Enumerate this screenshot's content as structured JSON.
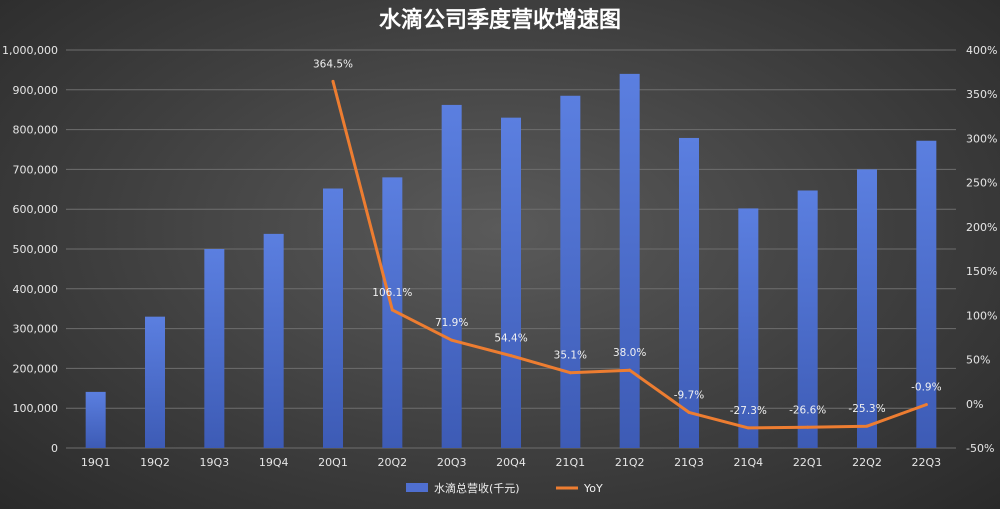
{
  "chart_data": {
    "type": "bar+line",
    "title": "水滴公司季度营收增速图",
    "categories": [
      "19Q1",
      "19Q2",
      "19Q3",
      "19Q4",
      "20Q1",
      "20Q2",
      "20Q3",
      "20Q4",
      "21Q1",
      "21Q2",
      "21Q3",
      "21Q4",
      "22Q1",
      "22Q2",
      "22Q3"
    ],
    "series": [
      {
        "name": "水滴总营收(千元)",
        "type": "bar",
        "axis": "left",
        "color": "#4f6fd0",
        "values": [
          141000,
          330000,
          500000,
          538000,
          652000,
          680000,
          862000,
          830000,
          885000,
          940000,
          779000,
          602000,
          647000,
          700000,
          772000
        ]
      },
      {
        "name": "YoY",
        "type": "line",
        "axis": "right",
        "color": "#ed7d31",
        "values": [
          null,
          null,
          null,
          null,
          364.5,
          106.1,
          71.9,
          54.4,
          35.1,
          38.0,
          -9.7,
          -27.3,
          -26.6,
          -25.3,
          -0.9
        ],
        "labels": [
          "",
          "",
          "",
          "",
          "364.5%",
          "106.1%",
          "71.9%",
          "54.4%",
          "35.1%",
          "38.0%",
          "-9.7%",
          "-27.3%",
          "-26.6%",
          "-25.3%",
          "-0.9%"
        ]
      }
    ],
    "y_left": {
      "min": 0,
      "max": 1000000,
      "ticks": [
        0,
        100000,
        200000,
        300000,
        400000,
        500000,
        600000,
        700000,
        800000,
        900000,
        1000000
      ],
      "tick_labels": [
        "0",
        "100,000",
        "200,000",
        "300,000",
        "400,000",
        "500,000",
        "600,000",
        "700,000",
        "800,000",
        "900,000",
        "1,000,000"
      ]
    },
    "y_right": {
      "min": -50,
      "max": 400,
      "ticks": [
        -50,
        0,
        50,
        100,
        150,
        200,
        250,
        300,
        350,
        400
      ],
      "tick_labels": [
        "-50%",
        "0%",
        "50%",
        "100%",
        "150%",
        "200%",
        "250%",
        "300%",
        "350%",
        "400%"
      ]
    },
    "grid": true,
    "legend_position": "bottom-center",
    "xlabel": "",
    "ylabel": ""
  }
}
